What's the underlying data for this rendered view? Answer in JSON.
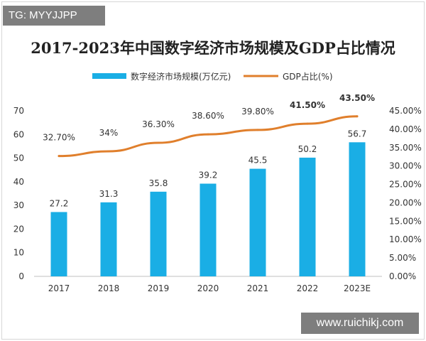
{
  "watermark_top": "TG: MYYJJPP",
  "watermark_bottom": "www.ruichikj.com",
  "chart_data": {
    "type": "bar",
    "title": "2017-2023年中国数字经济市场规模及GDP占比情况",
    "categories": [
      "2017",
      "2018",
      "2019",
      "2020",
      "2021",
      "2022",
      "2023E"
    ],
    "series": [
      {
        "name": "数字经济市场规模(万亿元)",
        "type": "bar",
        "axis": "left",
        "values": [
          27.2,
          31.3,
          35.8,
          39.2,
          45.5,
          50.2,
          56.7
        ],
        "labels": [
          "27.2",
          "31.3",
          "35.8",
          "39.2",
          "45.5",
          "50.2",
          "56.7"
        ]
      },
      {
        "name": "GDP占比(%)",
        "type": "line",
        "axis": "right",
        "values": [
          32.7,
          34,
          36.3,
          38.6,
          39.8,
          41.5,
          43.5
        ],
        "labels": [
          "32.70%",
          "34%",
          "36.30%",
          "38.60%",
          "39.80%",
          "41.50%",
          "43.50%"
        ],
        "bold_labels": [
          false,
          false,
          false,
          false,
          false,
          true,
          true
        ]
      }
    ],
    "y_left": {
      "min": 0,
      "max": 70,
      "step": 10,
      "ticks": [
        "0",
        "10",
        "20",
        "30",
        "40",
        "50",
        "60",
        "70"
      ]
    },
    "y_right": {
      "min": 0,
      "max": 45,
      "step": 5,
      "ticks": [
        "0.00%",
        "5.00%",
        "10.00%",
        "15.00%",
        "20.00%",
        "25.00%",
        "30.00%",
        "35.00%",
        "40.00%",
        "45.00%"
      ]
    },
    "legend_position": "top",
    "grid": false,
    "colors": {
      "bar": "#1aaee5",
      "line": "#e07f2c",
      "text": "#333333",
      "axis": "#bfbfbf"
    }
  }
}
